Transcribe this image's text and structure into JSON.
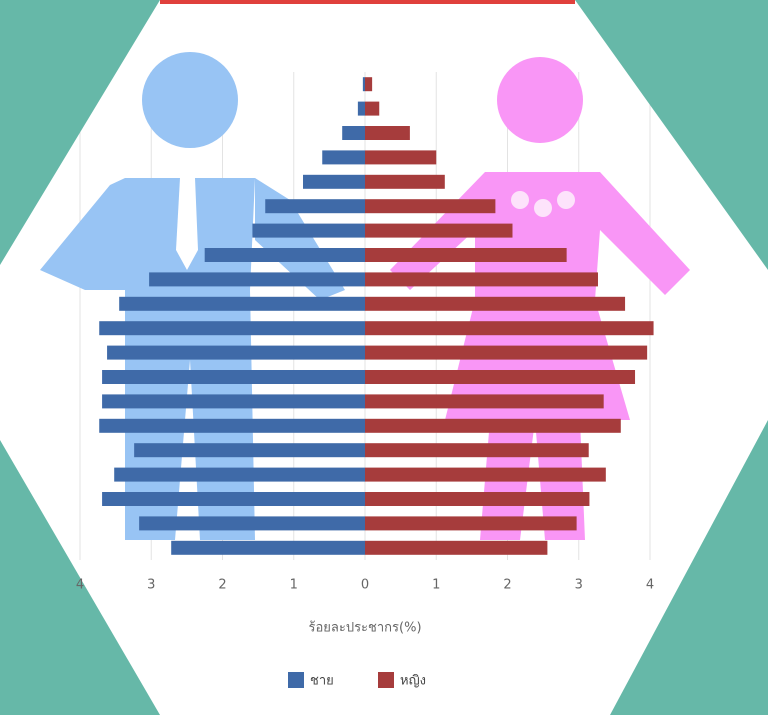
{
  "chart_data": {
    "type": "pyramid",
    "x_label": "ร้อยละประชากร(%)",
    "categories": [
      null,
      null,
      null,
      null,
      null,
      null,
      null,
      null,
      null,
      null,
      null,
      null,
      null,
      null,
      null,
      null,
      null,
      null,
      null,
      null
    ],
    "series": [
      {
        "name": "ชาย",
        "color": "#3f6aa8",
        "values": [
          -0.03,
          -0.1,
          -0.32,
          -0.6,
          -0.87,
          -1.4,
          -1.58,
          -2.25,
          -3.03,
          -3.45,
          -3.73,
          -3.62,
          -3.69,
          -3.69,
          -3.73,
          -3.24,
          -3.52,
          -3.69,
          -3.17,
          -2.72
        ]
      },
      {
        "name": "หญิง",
        "color": "#a63c3c",
        "values": [
          0.1,
          0.2,
          0.63,
          1.0,
          1.12,
          1.83,
          2.07,
          2.83,
          3.27,
          3.65,
          4.05,
          3.96,
          3.79,
          3.35,
          3.59,
          3.14,
          3.38,
          3.15,
          2.97,
          2.56
        ]
      }
    ],
    "xlim": [
      -4,
      4
    ],
    "xticks": [
      {
        "value": -4,
        "label": "4"
      },
      {
        "value": -3,
        "label": "3"
      },
      {
        "value": -2,
        "label": "2"
      },
      {
        "value": -1,
        "label": "1"
      },
      0,
      1,
      2,
      3,
      4
    ],
    "grid": true
  }
}
